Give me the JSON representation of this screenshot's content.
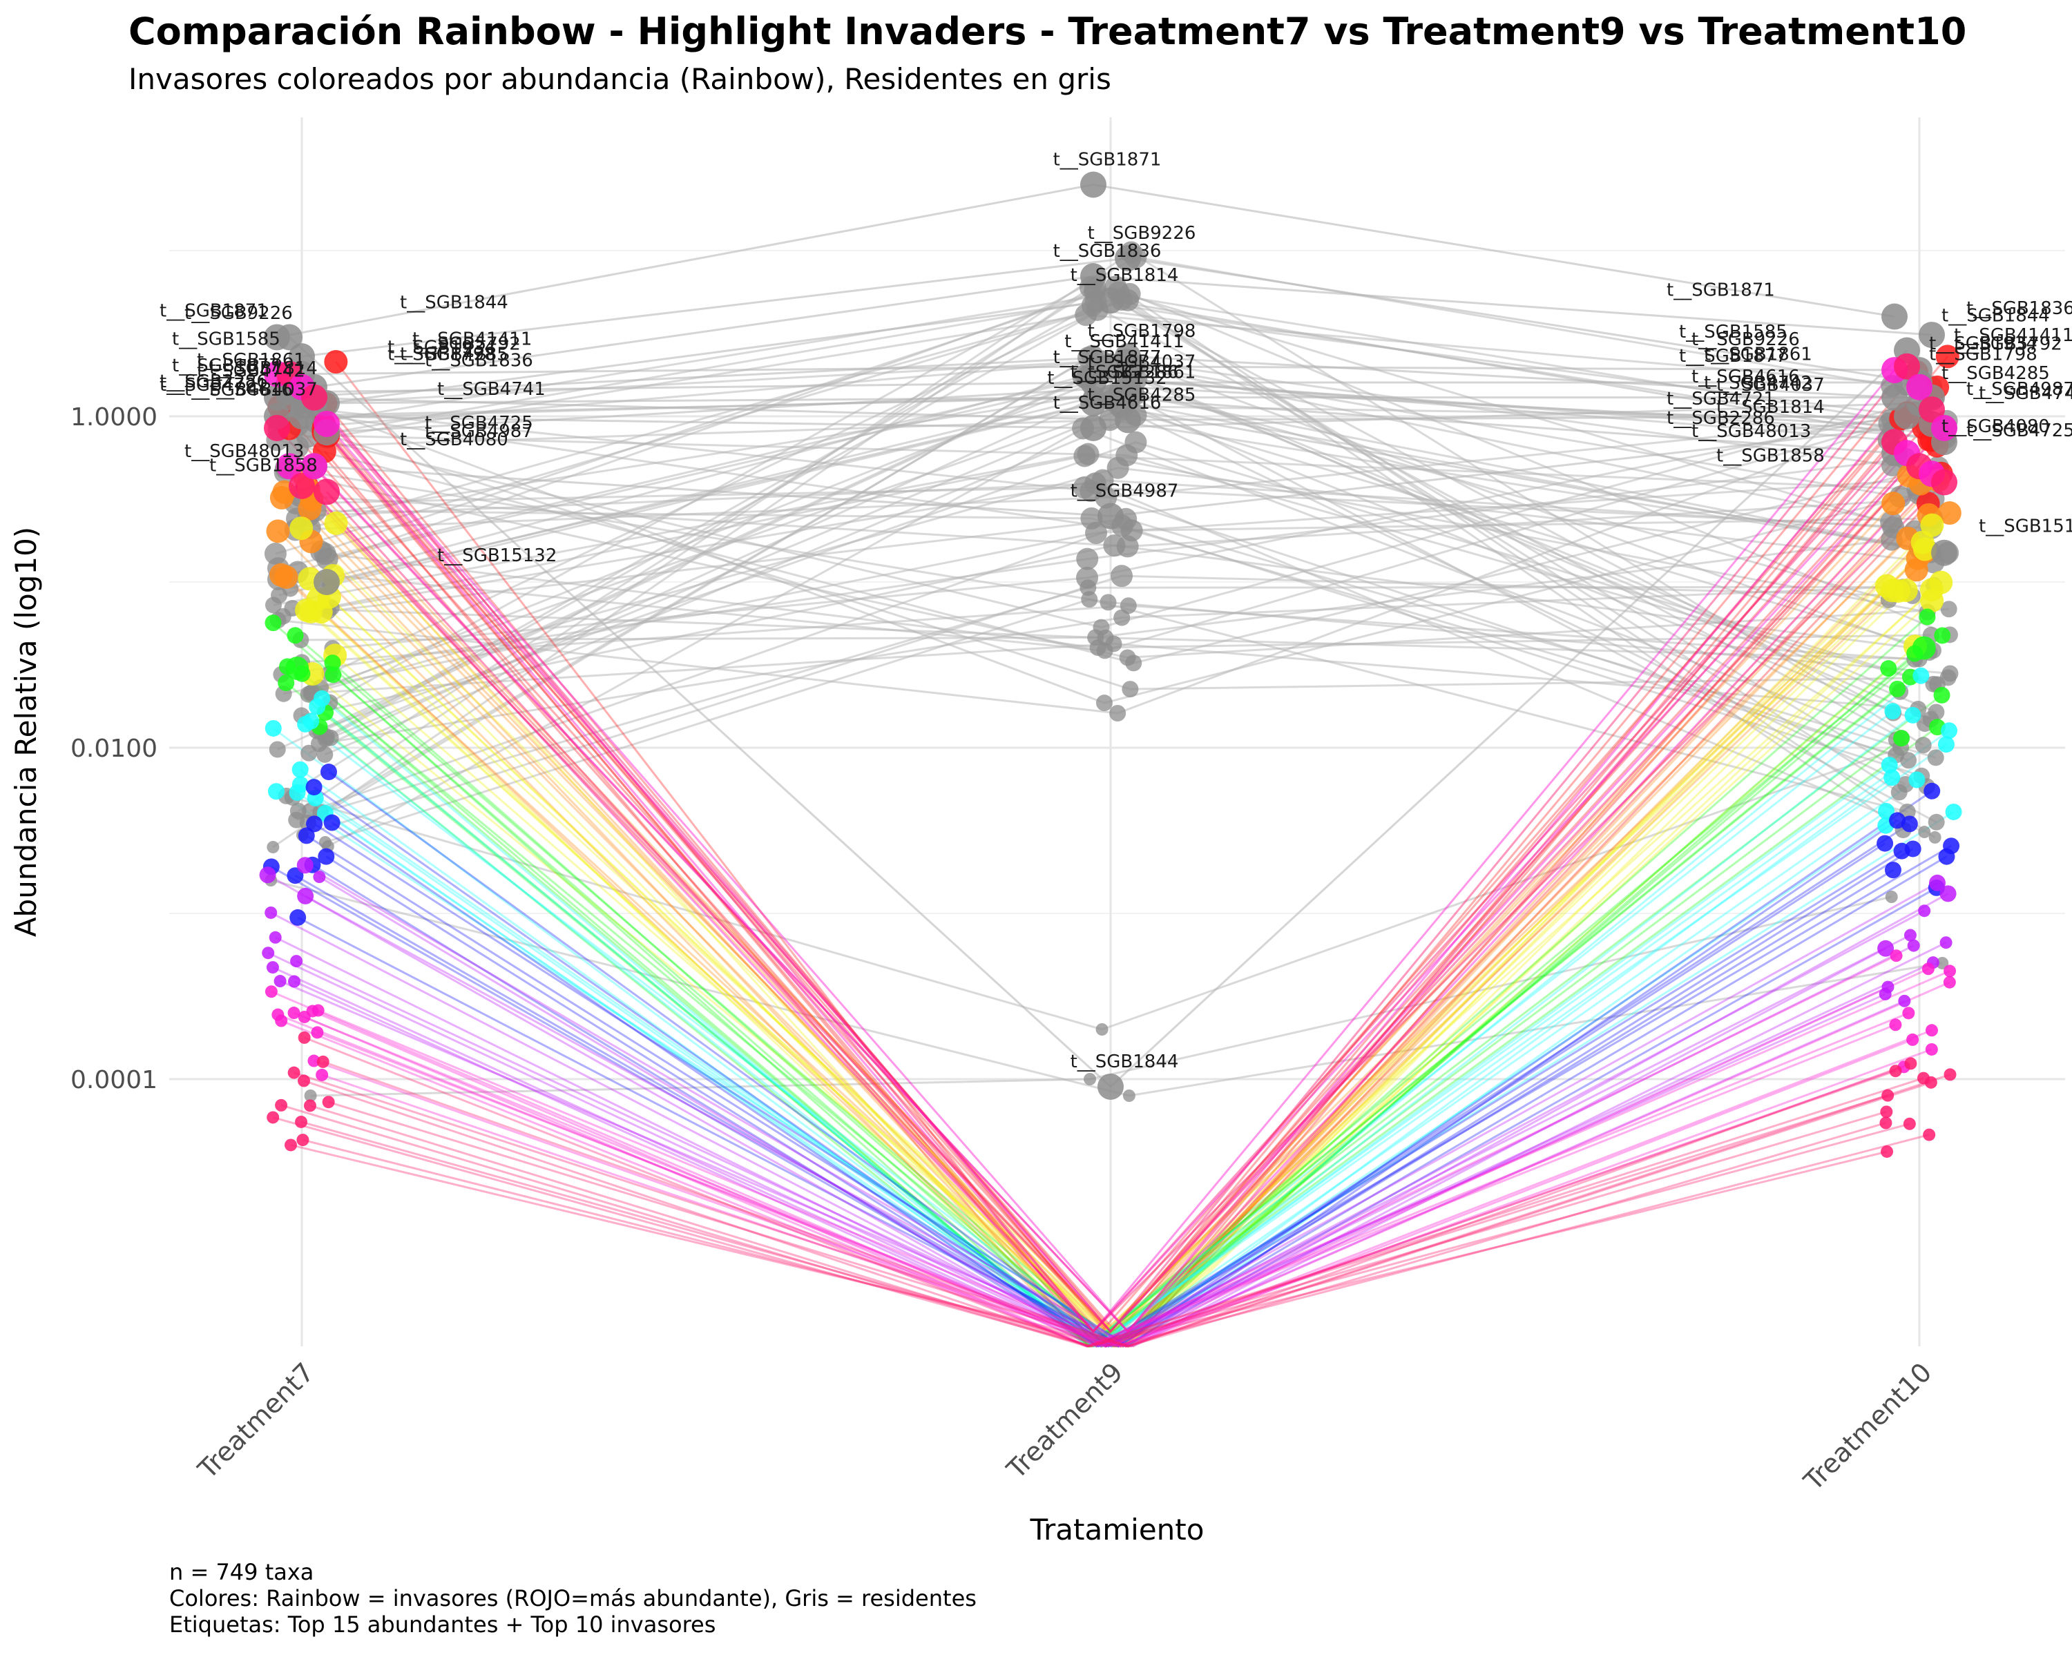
{
  "title": "Comparación Rainbow - Highlight Invaders - Treatment7 vs Treatment9 vs Treatment10",
  "subtitle": "Invasores coloreados por abundancia (Rainbow), Residentes en gris",
  "caption": [
    "n = 749 taxa",
    "Colores: Rainbow = invasores (ROJO=más abundante), Gris = residentes",
    "Etiquetas: Top 15 abundantes + Top 10 invasores"
  ],
  "chart_data": {
    "type": "scatter",
    "title": "Comparación Rainbow - Highlight Invaders - Treatment7 vs Treatment9 vs Treatment10",
    "subtitle": "Invasores coloreados por abundancia (Rainbow), Residentes en gris",
    "xlabel": "Tratamiento",
    "ylabel": "Abundancia Relativa (log10)",
    "categories": [
      "Treatment7",
      "Treatment9",
      "Treatment10"
    ],
    "y_scale": "log10",
    "y_ticks": [
      {
        "value": 1.0,
        "label": "1.0000"
      },
      {
        "value": 0.01,
        "label": "0.0100"
      },
      {
        "value": 0.0001,
        "label": "0.0001"
      }
    ],
    "ylim": [
      3e-06,
      60
    ],
    "grid": true,
    "legend": "none",
    "colors": {
      "resident": "#8c8c8c",
      "invader_scale": [
        "#ff1a1a",
        "#ff8c1a",
        "#f0f01a",
        "#1aff1a",
        "#1affff",
        "#1a1aff",
        "#c01aff",
        "#ff1ad0",
        "#ff1a6e"
      ]
    },
    "labeled_taxa": [
      {
        "name": "t__SGB1871",
        "group": "resident",
        "values": [
          3.0,
          25.0,
          4.0
        ]
      },
      {
        "name": "t__SGB1844",
        "group": "resident",
        "values": [
          3.0,
          9e-05,
          2.5
        ]
      },
      {
        "name": "t__SGB9226",
        "group": "resident",
        "values": [
          2.3,
          9.0,
          1.6
        ]
      },
      {
        "name": "t__SGB1836",
        "group": "resident",
        "values": [
          1.5,
          7.0,
          3.1
        ]
      },
      {
        "name": "t__SGB1814",
        "group": "resident",
        "values": [
          1.2,
          5.0,
          0.7
        ]
      },
      {
        "name": "t__SGB1798",
        "group": "resident",
        "values": [
          1.3,
          2.3,
          1.3
        ]
      },
      {
        "name": "t__SGB1877",
        "group": "resident",
        "values": [
          1.4,
          1.6,
          1.6
        ]
      },
      {
        "name": "t__SGB41411",
        "group": "resident",
        "values": [
          1.8,
          2.0,
          1.9
        ]
      },
      {
        "name": "t__SGB1861",
        "group": "resident",
        "values": [
          1.2,
          1.3,
          1.3
        ]
      },
      {
        "name": "t__SGB15132",
        "group": "resident",
        "values": [
          0.1,
          1.2,
          0.15
        ]
      },
      {
        "name": "t__SGB2286",
        "group": "resident",
        "values": [
          1.0,
          1.3,
          0.6
        ]
      },
      {
        "name": "t__SGB4285",
        "group": "resident",
        "values": [
          1.3,
          0.95,
          1.0
        ]
      },
      {
        "name": "t__SGB4616",
        "group": "resident",
        "values": [
          1.0,
          0.85,
          1.2
        ]
      },
      {
        "name": "t__SGB4987",
        "group": "resident",
        "values": [
          0.5,
          0.25,
          0.9
        ]
      },
      {
        "name": "t__SGB4037",
        "group": "resident",
        "values": [
          0.8,
          1.5,
          0.85
        ]
      },
      {
        "name": "t__SGB1934",
        "group": "invader",
        "values": [
          1.8,
          3e-06,
          1.9
        ]
      },
      {
        "name": "t__SGB1585",
        "group": "invader",
        "values": [
          1.8,
          3e-06,
          2.0
        ]
      },
      {
        "name": "t__SGB5792",
        "group": "invader",
        "values": [
          1.5,
          3e-06,
          1.5
        ]
      },
      {
        "name": "t__SGB4742",
        "group": "invader",
        "values": [
          1.3,
          3e-06,
          1.1
        ]
      },
      {
        "name": "t__SGB4741",
        "group": "invader",
        "values": [
          0.9,
          3e-06,
          0.85
        ]
      },
      {
        "name": "t__SGB4721",
        "group": "invader",
        "values": [
          0.85,
          3e-06,
          0.7
        ]
      },
      {
        "name": "t__SGB4080",
        "group": "invader",
        "values": [
          0.5,
          3e-06,
          0.6
        ]
      },
      {
        "name": "t__SGB48013",
        "group": "invader",
        "values": [
          0.38,
          3e-06,
          0.5
        ]
      },
      {
        "name": "t__SGB4725",
        "group": "invader",
        "values": [
          0.5,
          3e-06,
          0.45
        ]
      },
      {
        "name": "t__SGB1858",
        "group": "invader",
        "values": [
          0.35,
          3e-06,
          0.4
        ]
      }
    ]
  }
}
